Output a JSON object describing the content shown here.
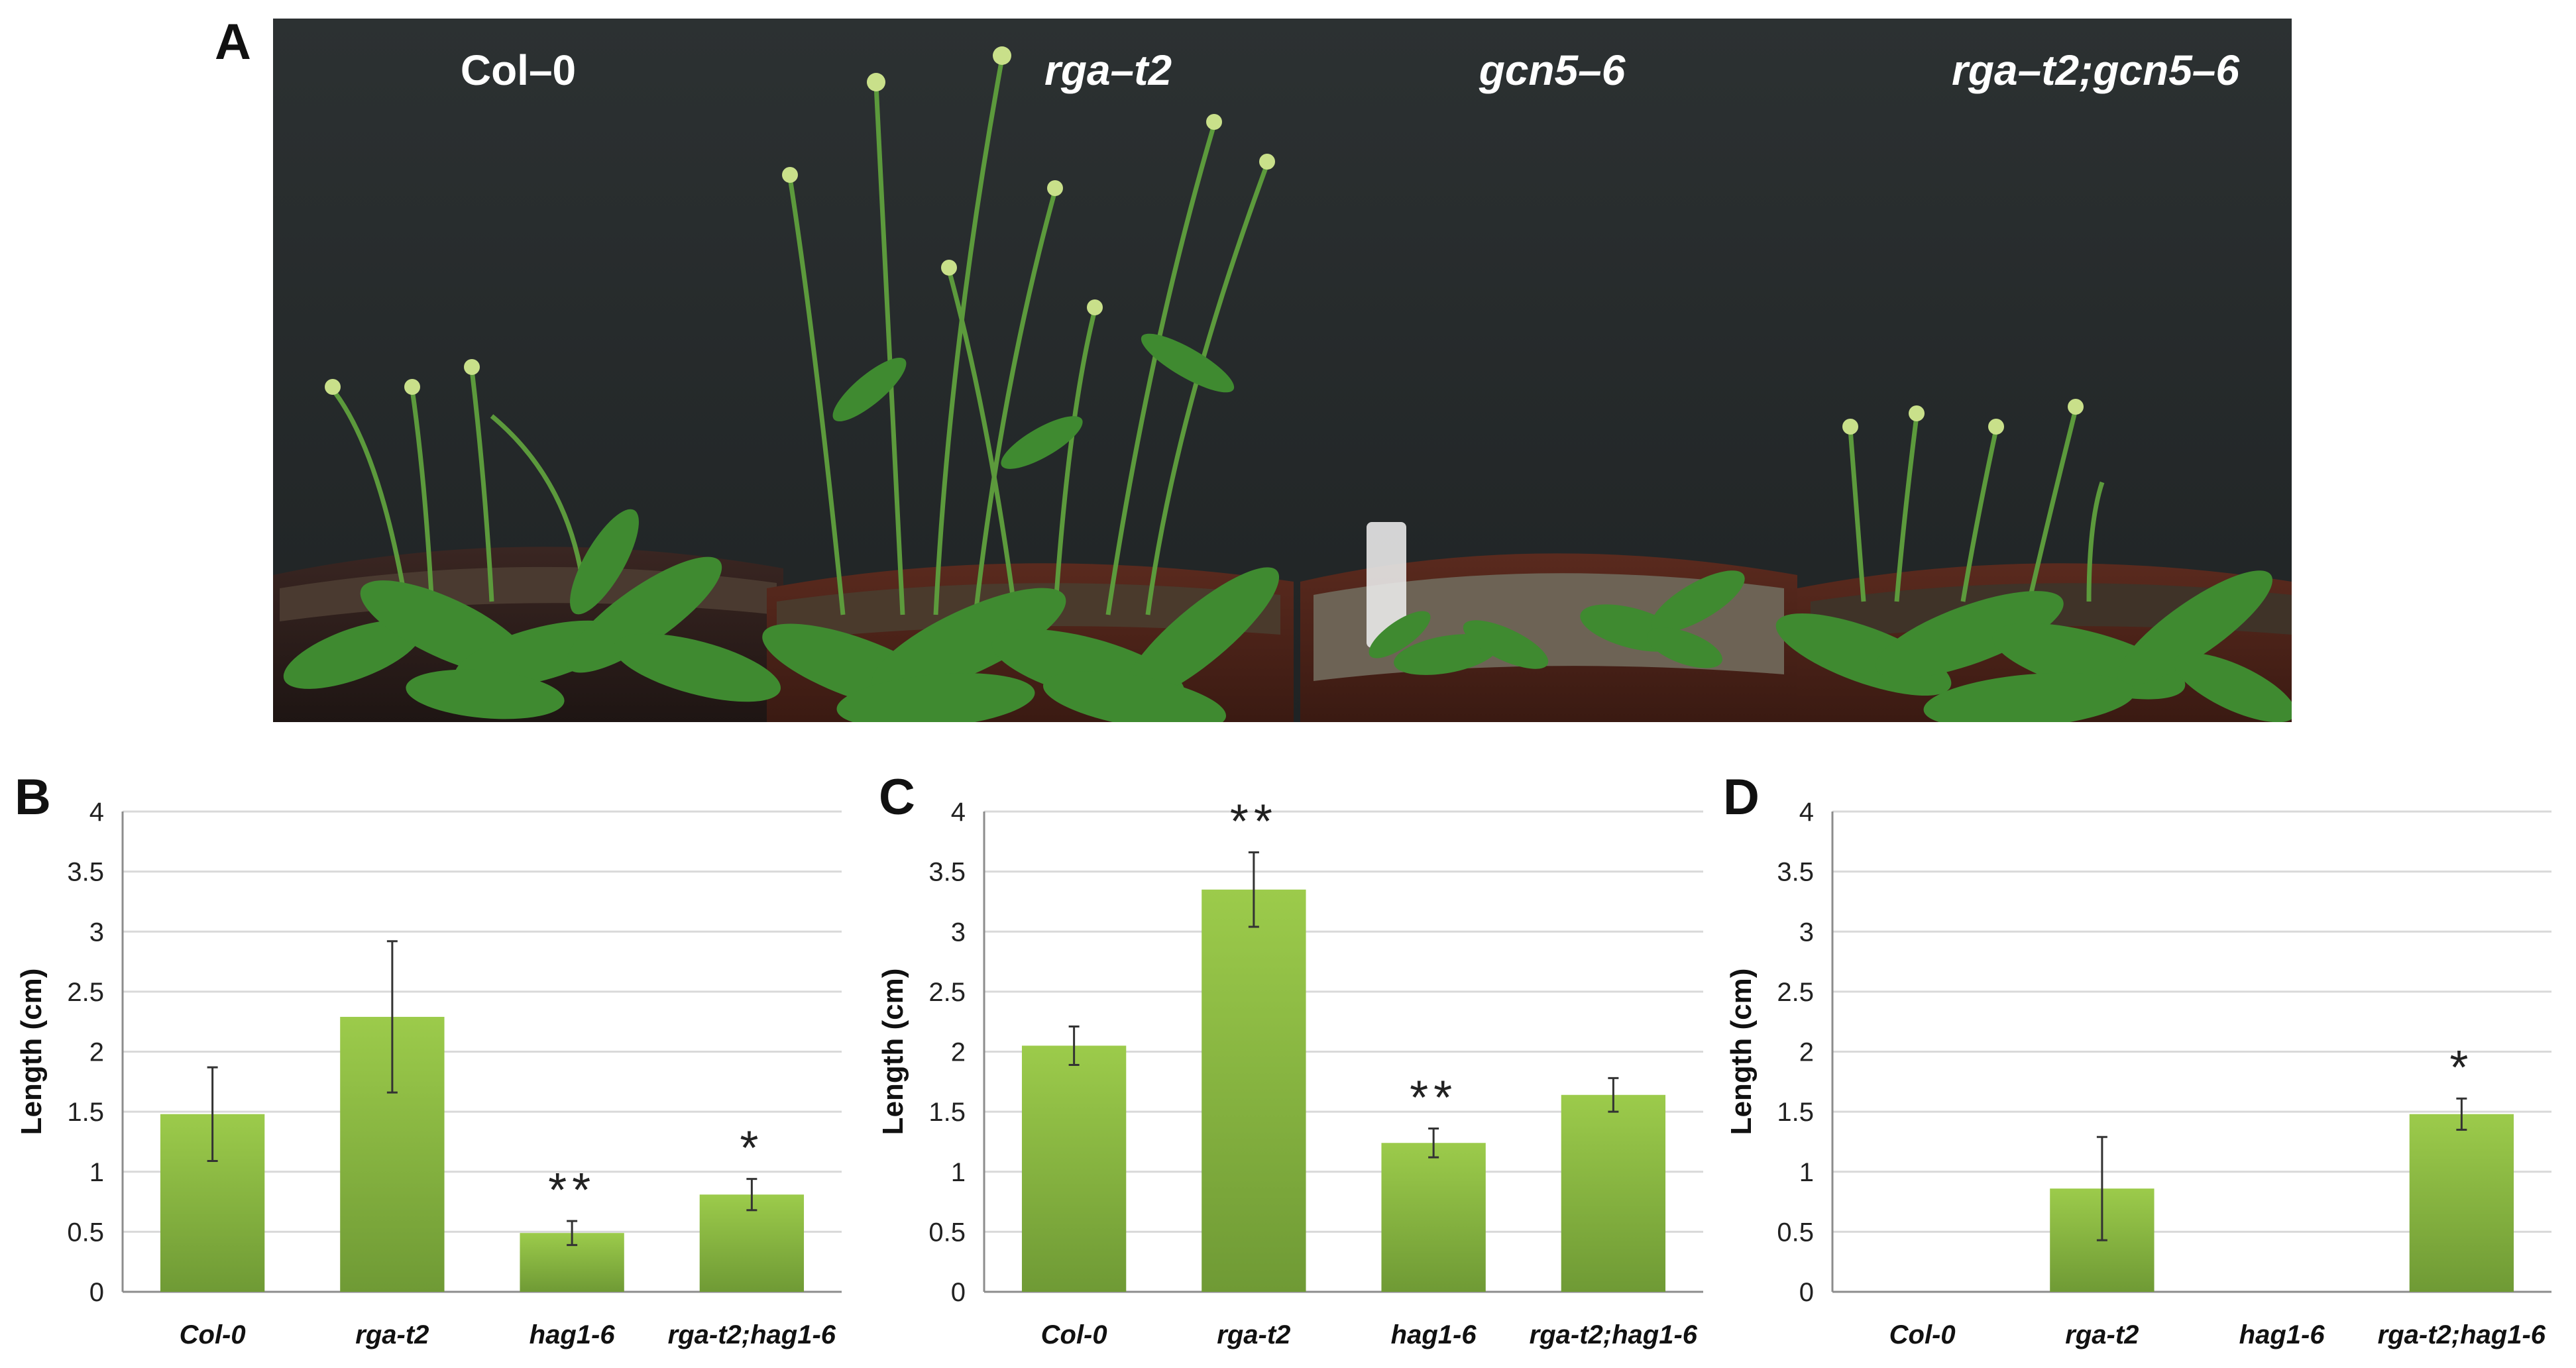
{
  "panels": {
    "A": {
      "letter": "A",
      "genotypes": [
        "Col–0",
        "rga–t2",
        "gcn5–6",
        "rga–t2;gcn5–6"
      ]
    },
    "B": {
      "letter": "B"
    },
    "C": {
      "letter": "C"
    },
    "D": {
      "letter": "D"
    }
  },
  "colors": {
    "bar_top": "#9ccb4b",
    "bar_bottom": "#6f9a35",
    "grid": "#d9d9d9",
    "axis": "#8c8c8c",
    "photo_bg": "#262a2b",
    "leaf": "#3f8a30",
    "pot": "#2a1e1c"
  },
  "chart_data": [
    {
      "panel": "B",
      "type": "bar",
      "categories": [
        "Col-0",
        "rga-t2",
        "hag1-6",
        "rga-t2;hag1-6"
      ],
      "values": [
        1.48,
        2.29,
        0.49,
        0.81
      ],
      "errors": [
        0.39,
        0.63,
        0.1,
        0.13
      ],
      "significance": [
        "",
        "",
        "**",
        "*"
      ],
      "ylabel": "Length (cm)",
      "yticks": [
        "0",
        "0.5",
        "1",
        "1.5",
        "2",
        "2.5",
        "3",
        "3.5",
        "4"
      ],
      "ylim": [
        0,
        4
      ],
      "grid": true
    },
    {
      "panel": "C",
      "type": "bar",
      "categories": [
        "Col-0",
        "rga-t2",
        "hag1-6",
        "rga-t2;hag1-6"
      ],
      "values": [
        2.05,
        3.35,
        1.24,
        1.64
      ],
      "errors": [
        0.16,
        0.31,
        0.12,
        0.14
      ],
      "significance": [
        "",
        "**",
        "**",
        ""
      ],
      "ylabel": "Length (cm)",
      "yticks": [
        "0",
        "0.5",
        "1",
        "1.5",
        "2",
        "2.5",
        "3",
        "3.5",
        "4"
      ],
      "ylim": [
        0,
        4
      ],
      "grid": true
    },
    {
      "panel": "D",
      "type": "bar",
      "categories": [
        "Col-0",
        "rga-t2",
        "hag1-6",
        "rga-t2;hag1-6"
      ],
      "values": [
        0,
        0.86,
        0,
        1.48
      ],
      "errors": [
        0,
        0.43,
        0,
        0.13
      ],
      "significance": [
        "",
        "",
        "",
        "*"
      ],
      "ylabel": "Length (cm)",
      "yticks": [
        "0",
        "0.5",
        "1",
        "1.5",
        "2",
        "2.5",
        "3",
        "3.5",
        "4"
      ],
      "ylim": [
        0,
        4
      ],
      "grid": true
    }
  ]
}
